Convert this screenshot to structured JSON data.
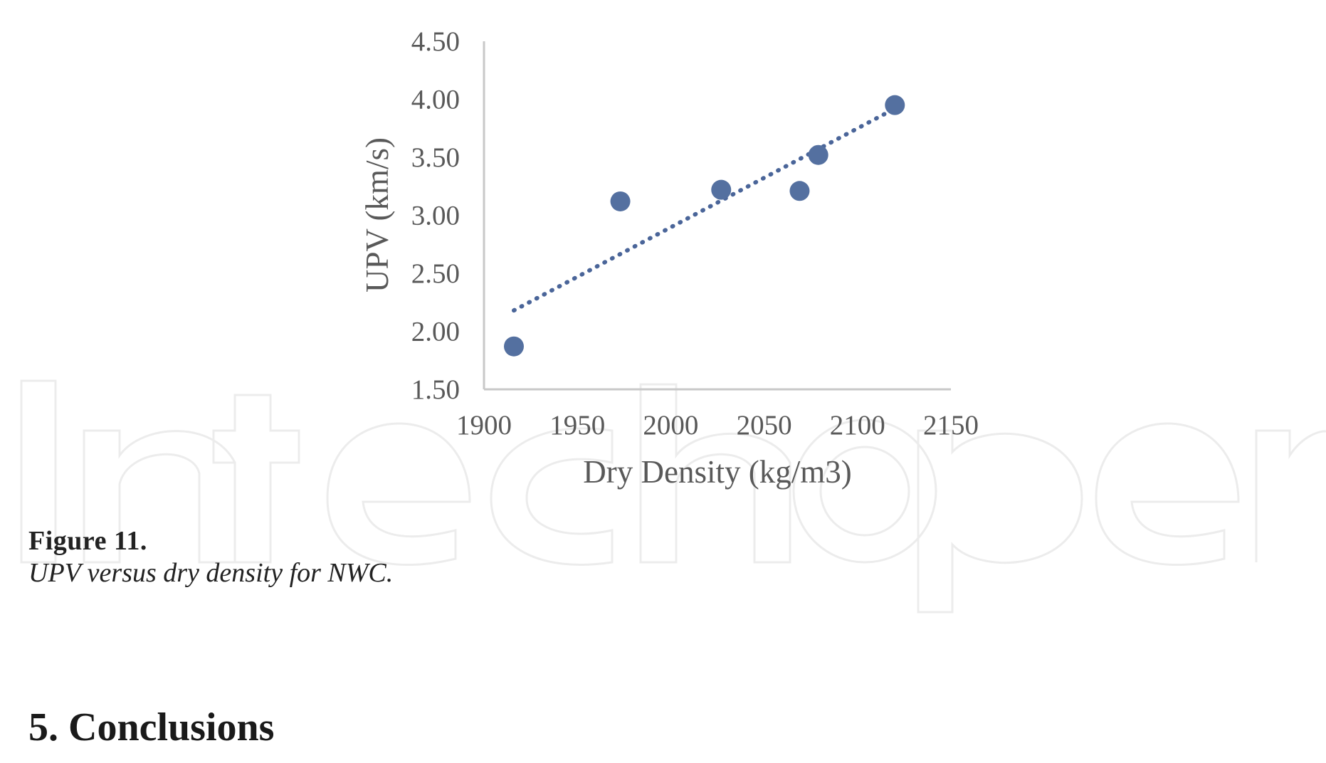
{
  "chart_data": {
    "type": "scatter",
    "xlabel": "Dry Density (kg/m3)",
    "ylabel": "UPV (km/s)",
    "xlim": [
      1900,
      2150
    ],
    "ylim": [
      1.5,
      4.5
    ],
    "x_ticks": [
      "1900",
      "1950",
      "2000",
      "2050",
      "2100",
      "2150"
    ],
    "y_ticks": [
      "1.50",
      "2.00",
      "2.50",
      "3.00",
      "3.50",
      "4.00",
      "4.50"
    ],
    "series": [
      {
        "points": [
          {
            "x": 1916,
            "y": 1.87
          },
          {
            "x": 1973,
            "y": 3.12
          },
          {
            "x": 2027,
            "y": 3.22
          },
          {
            "x": 2069,
            "y": 3.21
          },
          {
            "x": 2079,
            "y": 3.52
          },
          {
            "x": 2120,
            "y": 3.95
          }
        ]
      }
    ],
    "trendline": {
      "style": "dotted",
      "type": "linear",
      "from": {
        "x": 1916,
        "y": 2.18
      },
      "to": {
        "x": 2120,
        "y": 3.92
      }
    },
    "marker_color": "#5470a0",
    "trendline_color": "#4a6599",
    "axis_color": "#c8c8c8",
    "grid": false,
    "legend": "none"
  },
  "figure": {
    "label": "Figure 11.",
    "caption": "UPV versus dry density for NWC."
  },
  "section": {
    "heading": "5. Conclusions"
  },
  "watermark": {
    "text": "IntechOpen"
  }
}
